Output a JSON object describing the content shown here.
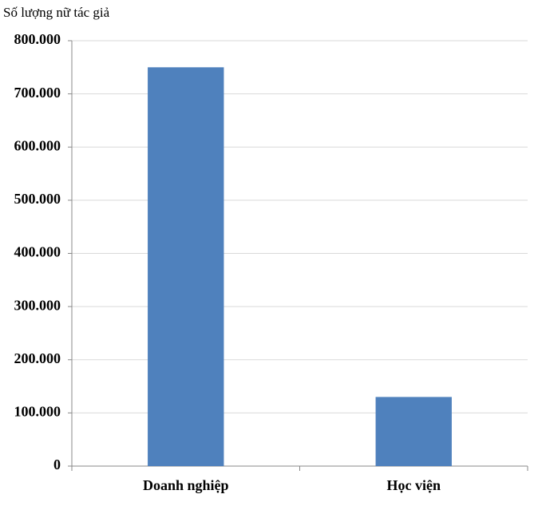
{
  "chart_data": {
    "type": "bar",
    "y_axis_label": "Số lượng nữ tác giả",
    "categories": [
      "Doanh nghiệp",
      "Học viện"
    ],
    "values": [
      750000,
      130000
    ],
    "color": "#4f81bd",
    "ylim": [
      0,
      800000
    ],
    "yticks": [
      0,
      {
        "value": 100000,
        "label": "100.000"
      },
      {
        "value": 200000,
        "label": "200.000"
      },
      {
        "value": 300000,
        "label": "300.000"
      },
      {
        "value": 400000,
        "label": "400.000"
      },
      {
        "value": 500000,
        "label": "500.000"
      },
      {
        "value": 600000,
        "label": "600.000"
      },
      {
        "value": 700000,
        "label": "700.000"
      },
      {
        "value": 800000,
        "label": "800.000"
      }
    ],
    "grid": true
  }
}
